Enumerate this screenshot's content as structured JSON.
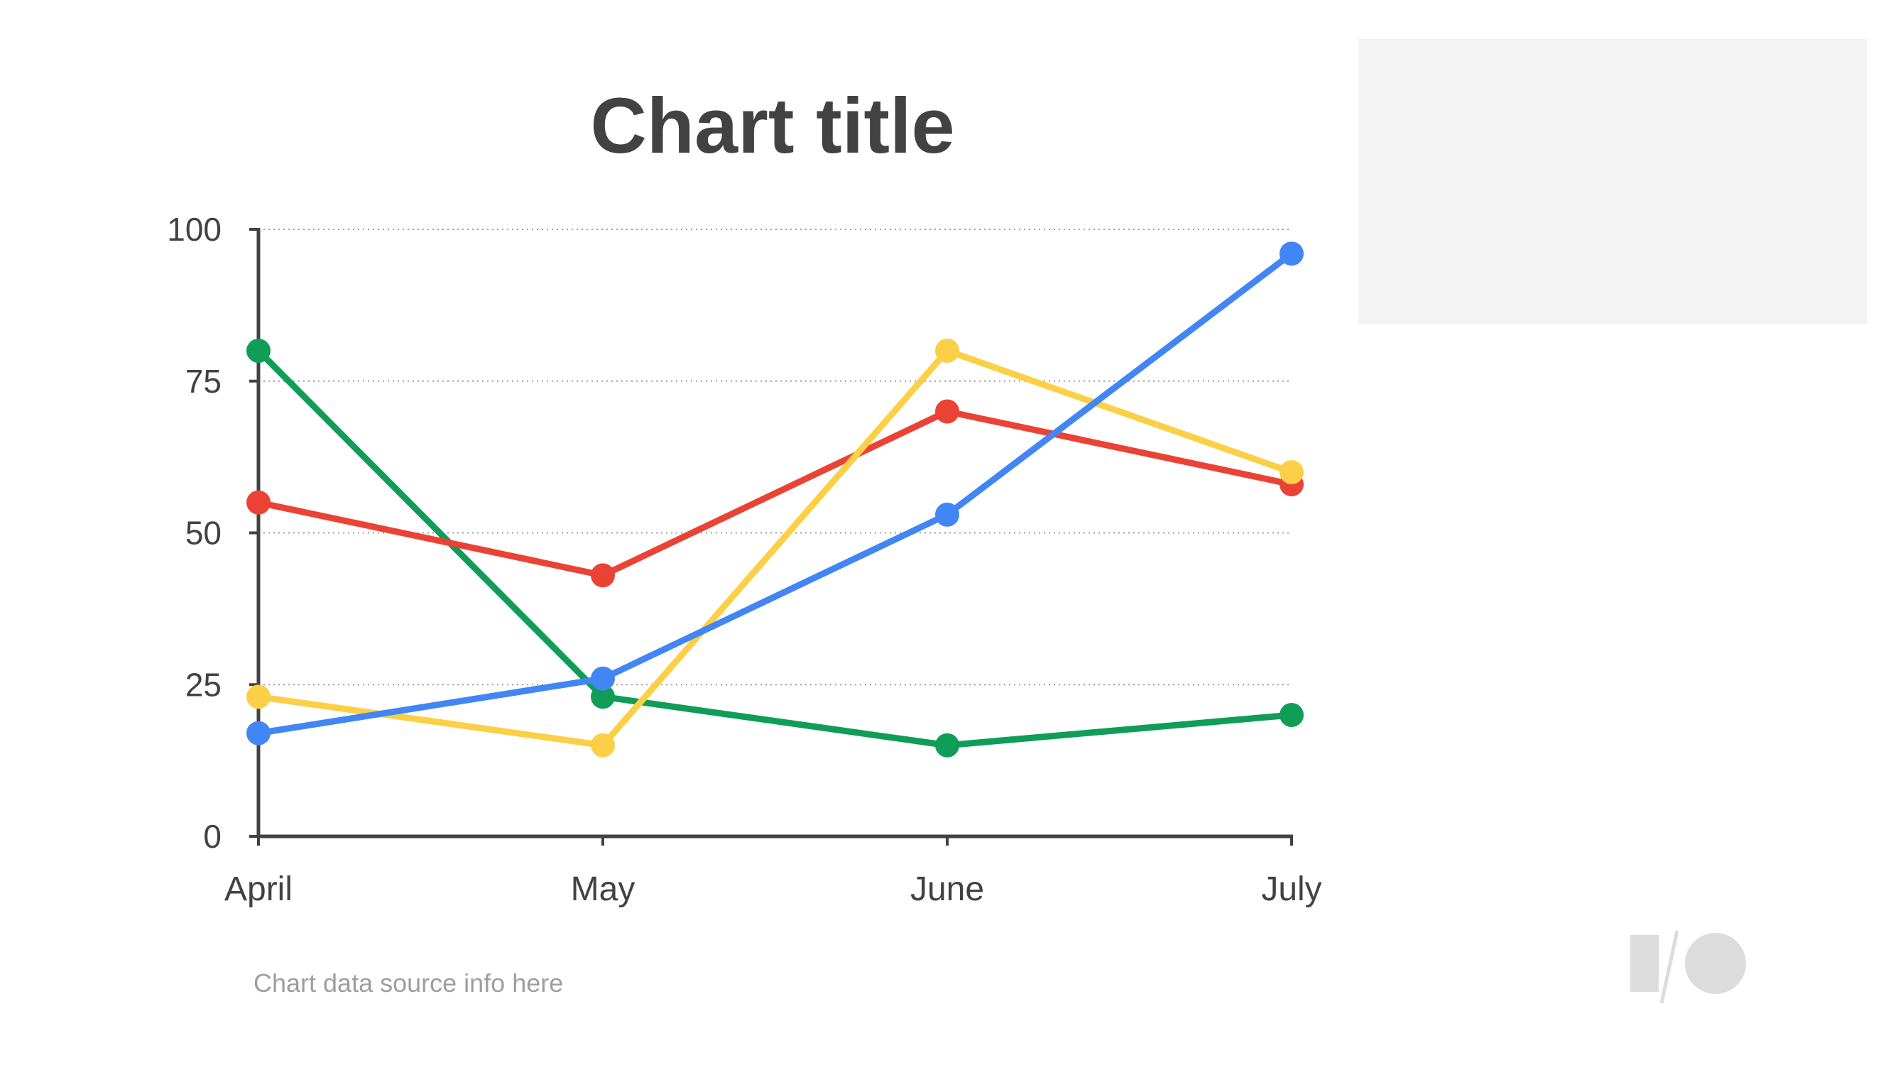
{
  "chart_data": {
    "type": "line",
    "title": "Chart title",
    "categories": [
      "April",
      "May",
      "June",
      "July"
    ],
    "ylim": [
      0,
      100
    ],
    "yticks": [
      0,
      25,
      50,
      75,
      100
    ],
    "grid": true,
    "series": [
      {
        "color": "#0f9d58",
        "values": [
          80,
          23,
          15,
          20
        ]
      },
      {
        "color": "#ea4335",
        "values": [
          55,
          43,
          70,
          58
        ]
      },
      {
        "color": "#fbd046",
        "values": [
          23,
          15,
          80,
          60
        ]
      },
      {
        "color": "#4285f4",
        "values": [
          17,
          26,
          53,
          96
        ]
      }
    ],
    "source": "Chart data source info here"
  },
  "legend_panel": {
    "color": "#f3f3f3"
  },
  "logo": {
    "icon": "google-io-logo-icon"
  }
}
